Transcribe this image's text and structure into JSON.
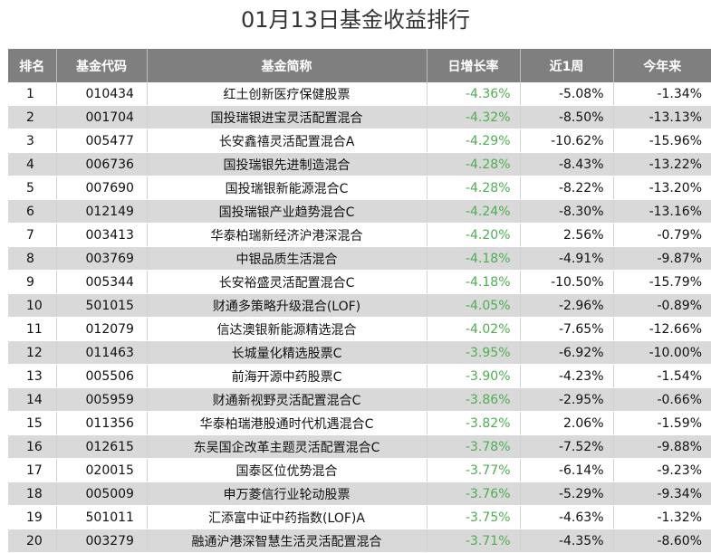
{
  "title": "01月13日基金收益排行",
  "columns": [
    "排名",
    "基金代码",
    "基金简称",
    "日增长率",
    "近1周",
    "今年来"
  ],
  "colors": {
    "header_bg": "#7f7f7f",
    "stripe": "#d9d9d9",
    "negative_daily": "#4caf50"
  },
  "rows": [
    {
      "rank": "1",
      "code": "010434",
      "name": "红土创新医疗保健股票",
      "daily": "-4.36%",
      "week": "-5.08%",
      "ytd": "-1.34%"
    },
    {
      "rank": "2",
      "code": "001704",
      "name": "国投瑞银进宝灵活配置混合",
      "daily": "-4.32%",
      "week": "-8.50%",
      "ytd": "-13.13%"
    },
    {
      "rank": "3",
      "code": "005477",
      "name": "长安鑫禧灵活配置混合A",
      "daily": "-4.29%",
      "week": "-10.62%",
      "ytd": "-15.96%"
    },
    {
      "rank": "4",
      "code": "006736",
      "name": "国投瑞银先进制造混合",
      "daily": "-4.28%",
      "week": "-8.43%",
      "ytd": "-13.22%"
    },
    {
      "rank": "5",
      "code": "007690",
      "name": "国投瑞银新能源混合C",
      "daily": "-4.28%",
      "week": "-8.22%",
      "ytd": "-13.20%"
    },
    {
      "rank": "6",
      "code": "012149",
      "name": "国投瑞银产业趋势混合C",
      "daily": "-4.24%",
      "week": "-8.30%",
      "ytd": "-13.16%"
    },
    {
      "rank": "7",
      "code": "003413",
      "name": "华泰柏瑞新经济沪港深混合",
      "daily": "-4.20%",
      "week": "2.56%",
      "ytd": "-0.79%"
    },
    {
      "rank": "8",
      "code": "003769",
      "name": "中银品质生活混合",
      "daily": "-4.18%",
      "week": "-4.91%",
      "ytd": "-9.87%"
    },
    {
      "rank": "9",
      "code": "005344",
      "name": "长安裕盛灵活配置混合C",
      "daily": "-4.18%",
      "week": "-10.50%",
      "ytd": "-15.79%"
    },
    {
      "rank": "10",
      "code": "501015",
      "name": "财通多策略升级混合(LOF)",
      "daily": "-4.05%",
      "week": "-2.96%",
      "ytd": "-0.89%"
    },
    {
      "rank": "11",
      "code": "012079",
      "name": "信达澳银新能源精选混合",
      "daily": "-4.02%",
      "week": "-7.65%",
      "ytd": "-12.66%"
    },
    {
      "rank": "12",
      "code": "011463",
      "name": "长城量化精选股票C",
      "daily": "-3.95%",
      "week": "-6.92%",
      "ytd": "-10.00%"
    },
    {
      "rank": "13",
      "code": "005506",
      "name": "前海开源中药股票C",
      "daily": "-3.90%",
      "week": "-4.23%",
      "ytd": "-1.54%"
    },
    {
      "rank": "14",
      "code": "005959",
      "name": "财通新视野灵活配置混合C",
      "daily": "-3.86%",
      "week": "-2.95%",
      "ytd": "-0.66%"
    },
    {
      "rank": "15",
      "code": "011356",
      "name": "华泰柏瑞港股通时代机遇混合C",
      "daily": "-3.82%",
      "week": "2.06%",
      "ytd": "-1.59%"
    },
    {
      "rank": "16",
      "code": "012615",
      "name": "东吴国企改革主题灵活配置混合C",
      "daily": "-3.78%",
      "week": "-7.52%",
      "ytd": "-9.88%"
    },
    {
      "rank": "17",
      "code": "020015",
      "name": "国泰区位优势混合",
      "daily": "-3.77%",
      "week": "-6.14%",
      "ytd": "-9.23%"
    },
    {
      "rank": "18",
      "code": "005009",
      "name": "申万菱信行业轮动股票",
      "daily": "-3.76%",
      "week": "-5.29%",
      "ytd": "-9.34%"
    },
    {
      "rank": "19",
      "code": "501011",
      "name": "汇添富中证中药指数(LOF)A",
      "daily": "-3.75%",
      "week": "-4.63%",
      "ytd": "-1.32%"
    },
    {
      "rank": "20",
      "code": "003279",
      "name": "融通沪港深智慧生活灵活配置混合",
      "daily": "-3.71%",
      "week": "-4.35%",
      "ytd": "-8.60%"
    }
  ]
}
